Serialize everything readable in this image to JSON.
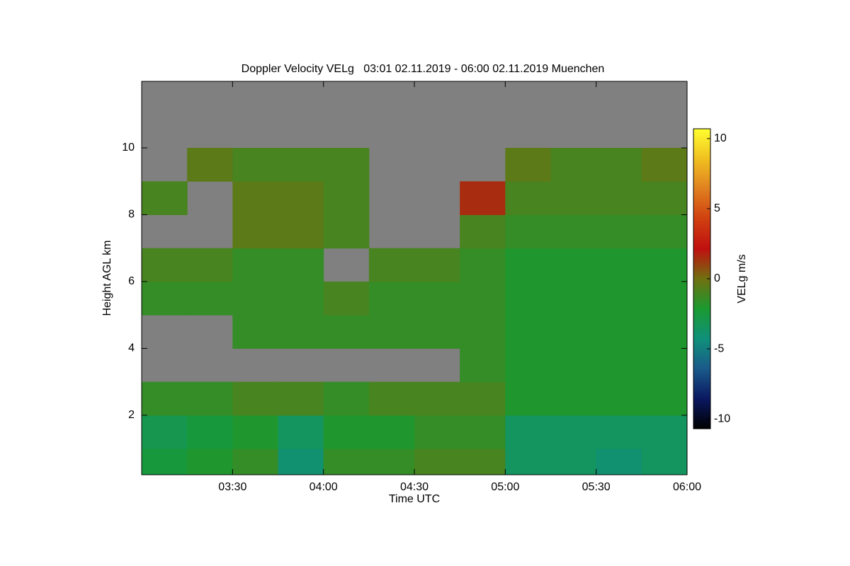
{
  "chart_data": {
    "type": "heatmap",
    "title": "Doppler Velocity VELg   03:01 02.11.2019 - 06:00 02.11.2019 Muenchen",
    "xlabel": "Time UTC",
    "ylabel": "Height AGL km",
    "colorbar_label": "VELg m/s",
    "xlim": [
      3.0,
      6.0
    ],
    "ylim": [
      0.22,
      11.99
    ],
    "xticks": [
      {
        "value": 3.5,
        "label": "03:30"
      },
      {
        "value": 4.0,
        "label": "04:00"
      },
      {
        "value": 4.5,
        "label": "04:30"
      },
      {
        "value": 5.0,
        "label": "05:00"
      },
      {
        "value": 5.5,
        "label": "05:30"
      },
      {
        "value": 6.0,
        "label": "06:00"
      }
    ],
    "yticks": [
      2,
      4,
      6,
      8,
      10
    ],
    "clim": [
      -10.7,
      10.7
    ],
    "cticks": [
      -10,
      -5,
      0,
      5,
      10
    ],
    "background": "#808080",
    "colormap": [
      "#000000",
      "#0a1860",
      "#1a5a8a",
      "#10907a",
      "#1a9a30",
      "#707010",
      "#c01010",
      "#d04010",
      "#e08020",
      "#f0c020",
      "#ffff30"
    ],
    "x_bins": [
      3.0,
      3.25,
      3.5,
      3.75,
      4.0,
      4.25,
      4.5,
      4.75,
      5.0,
      5.25,
      5.5,
      5.75,
      6.0
    ],
    "y_bins": [
      0.22,
      1,
      2,
      3,
      4,
      5,
      6,
      7,
      8,
      9,
      10,
      11,
      11.99
    ],
    "z": [
      [
        -2.5,
        -2,
        -1.5,
        -4,
        -1.5,
        -1.5,
        -1,
        -1,
        -3.5,
        -3.5,
        -4,
        -3.5
      ],
      [
        -3,
        -2.5,
        -2,
        -3.5,
        -2,
        -2,
        -1.5,
        -1.5,
        -3.5,
        -3.5,
        -3.5,
        -3.5
      ],
      [
        -1.5,
        -1.5,
        -1,
        -1,
        -1.5,
        -1,
        -1,
        -1,
        -2,
        -2,
        -2,
        -2
      ],
      [
        null,
        null,
        null,
        null,
        null,
        null,
        null,
        -1.5,
        -2,
        -2,
        -2,
        -2
      ],
      [
        null,
        null,
        -1.5,
        -1.5,
        -1.5,
        -1.5,
        -1.5,
        -1.5,
        -2,
        -2,
        -2,
        -2
      ],
      [
        -1.5,
        -1.5,
        -1.5,
        -1.5,
        -1,
        -1.5,
        -1.5,
        -1.5,
        -2,
        -2,
        -2,
        -2
      ],
      [
        -1,
        -1,
        -1.5,
        -1.5,
        null,
        -1,
        -1,
        -1.5,
        -2,
        -2,
        -2,
        -2
      ],
      [
        null,
        null,
        -0.5,
        -0.5,
        -1,
        null,
        null,
        -1,
        -1.5,
        -1.5,
        -1.5,
        -1.5
      ],
      [
        -1,
        null,
        -0.5,
        -0.5,
        -1,
        null,
        null,
        1.5,
        -1,
        -1,
        -1,
        -1
      ],
      [
        null,
        -0.5,
        -1,
        -1,
        -1,
        null,
        null,
        null,
        -0.5,
        -1,
        -1,
        -0.5
      ],
      [
        null,
        null,
        null,
        null,
        null,
        null,
        null,
        null,
        null,
        null,
        null,
        null
      ],
      [
        null,
        null,
        null,
        null,
        null,
        null,
        null,
        null,
        null,
        null,
        null,
        null
      ]
    ]
  }
}
